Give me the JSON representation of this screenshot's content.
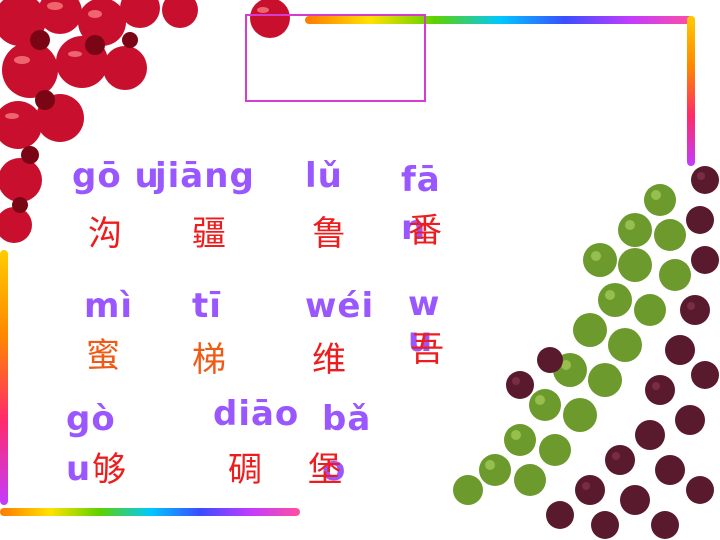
{
  "slide": {
    "words": [
      {
        "pinyin": "gō u",
        "hanzi": "沟"
      },
      {
        "pinyin": "jiāng",
        "hanzi": "疆"
      },
      {
        "pinyin": "lǔ",
        "hanzi": "鲁"
      },
      {
        "pinyin": "fā n",
        "hanzi": "番"
      },
      {
        "pinyin": "mì",
        "hanzi": "蜜"
      },
      {
        "pinyin": "tī",
        "hanzi": "梯"
      },
      {
        "pinyin": "wéi",
        "hanzi": "维"
      },
      {
        "pinyin": "w u",
        "hanzi": "吾"
      },
      {
        "pinyin": "gò u",
        "hanzi": "够"
      },
      {
        "pinyin": "diāo",
        "hanzi": "碉"
      },
      {
        "pinyin": "bǎ o",
        "hanzi": "堡"
      }
    ]
  },
  "colors": {
    "pinyin": "#9a57ff",
    "hanzi_red": "#ee1c1c",
    "hanzi_orange": "#f05a14",
    "box_border": "#d63cd0"
  },
  "icons": [
    "red-berries-decoration",
    "grapes-decoration"
  ]
}
